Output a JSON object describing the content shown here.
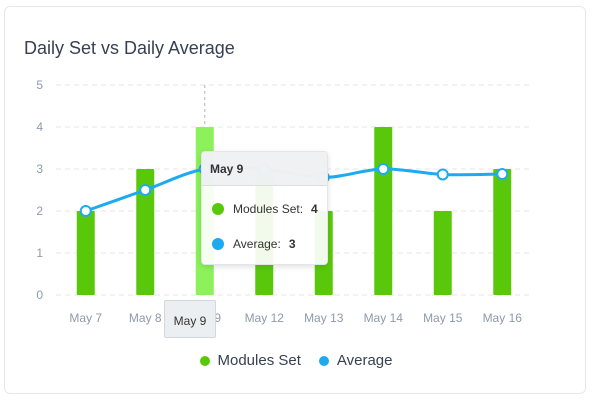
{
  "card": {
    "title": "Daily Set vs Daily Average"
  },
  "colors": {
    "bars": "#5ac80a",
    "bars_hover": "#8cf15a",
    "line": "#1eaaf1",
    "grid": "#e6e6e6",
    "axis_text": "#8e9aab"
  },
  "chart_data": {
    "type": "bar",
    "title": "Daily Set vs Daily Average",
    "categories": [
      "May 7",
      "May 8",
      "May 9",
      "May 12",
      "May 13",
      "May 14",
      "May 15",
      "May 16"
    ],
    "series": [
      {
        "name": "Modules Set",
        "type": "bar",
        "values": [
          2,
          3,
          4,
          3,
          2,
          4,
          2,
          3
        ]
      },
      {
        "name": "Average",
        "type": "line",
        "values": [
          2,
          2.5,
          3,
          3,
          2.8,
          3,
          2.87,
          2.88
        ]
      }
    ],
    "yticks": [
      "0",
      "1",
      "2",
      "3",
      "4",
      "5"
    ],
    "ylim": [
      0,
      5
    ],
    "grid": "dashed",
    "legend_position": "bottom",
    "hovered_index": 2
  },
  "tooltip": {
    "date": "May 9",
    "rows": [
      {
        "label": "Modules Set:",
        "value": "4"
      },
      {
        "label": "Average:",
        "value": "3"
      }
    ]
  },
  "x_tooltip": "May 9",
  "legend": [
    {
      "label": "Modules Set"
    },
    {
      "label": "Average"
    }
  ]
}
